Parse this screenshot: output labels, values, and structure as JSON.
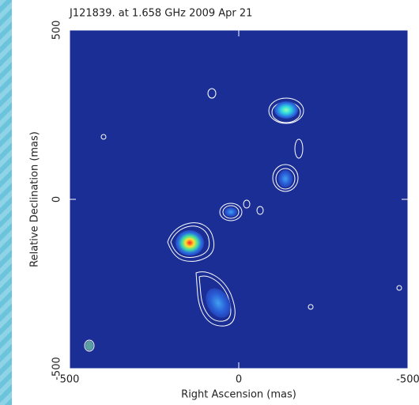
{
  "chart_data": {
    "type": "image",
    "title": "J121839. at 1.658 GHz 2009 Apr 21",
    "x_label": "Right Ascension  (mas)",
    "y_label": "Relative Declination  (mas)",
    "xlim": [
      500,
      -500
    ],
    "ylim": [
      -500,
      500
    ],
    "xticks": [
      500,
      0,
      -500
    ],
    "yticks": [
      -500,
      0,
      500
    ],
    "background": "#1b2e96"
  }
}
